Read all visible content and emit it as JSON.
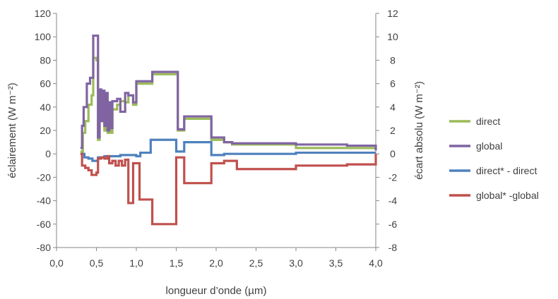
{
  "chart_data": {
    "type": "line",
    "step": true,
    "xlabel": "longueur d’onde (µm)",
    "ylabel_left": "éclairement (W m⁻²)",
    "ylabel_right": "écart absolu (W m⁻²)",
    "xlim": [
      0,
      4.0
    ],
    "ylim_left": [
      -80,
      120
    ],
    "ylim_right": [
      -8,
      12
    ],
    "x_ticks": [
      "0,0",
      "0,5",
      "1,0",
      "1,5",
      "2,0",
      "2,5",
      "3,0",
      "3,5",
      "4,0"
    ],
    "y_ticks_left": [
      "-80",
      "-60",
      "-40",
      "-20",
      "0",
      "20",
      "40",
      "60",
      "80",
      "100",
      "120"
    ],
    "y_ticks_right": [
      "-8",
      "-6",
      "-4",
      "-2",
      "0",
      "2",
      "4",
      "6",
      "8",
      "10",
      "12"
    ],
    "grid": false,
    "legend_position": "right",
    "series": [
      {
        "name": "direct",
        "color": "#9BBB59",
        "axis": "left",
        "x": [
          0.3,
          0.33,
          0.36,
          0.4,
          0.44,
          0.46,
          0.5,
          0.52,
          0.54,
          0.56,
          0.58,
          0.6,
          0.62,
          0.64,
          0.66,
          0.68,
          0.7,
          0.72,
          0.76,
          0.8,
          0.86,
          0.9,
          0.96,
          1.0,
          1.04,
          1.2,
          1.52,
          1.6,
          1.94,
          2.1,
          2.2,
          3.0,
          4.0
        ],
        "y": [
          2,
          18,
          28,
          42,
          50,
          82,
          80,
          12,
          50,
          30,
          48,
          20,
          48,
          18,
          40,
          18,
          38,
          38,
          42,
          45,
          44,
          50,
          42,
          60,
          60,
          68,
          20,
          30,
          12,
          10,
          8,
          5,
          3
        ]
      },
      {
        "name": "global",
        "color": "#8064A2",
        "axis": "left",
        "x": [
          0.3,
          0.32,
          0.34,
          0.38,
          0.42,
          0.46,
          0.52,
          0.54,
          0.56,
          0.58,
          0.6,
          0.62,
          0.64,
          0.66,
          0.68,
          0.7,
          0.72,
          0.76,
          0.8,
          0.86,
          0.9,
          0.96,
          1.0,
          1.04,
          1.2,
          1.52,
          1.6,
          1.94,
          2.1,
          2.2,
          3.0,
          3.64,
          4.0
        ],
        "y": [
          5,
          24,
          40,
          60,
          65,
          101,
          14,
          55,
          28,
          54,
          24,
          52,
          20,
          44,
          22,
          45,
          45,
          47,
          36,
          52,
          50,
          44,
          62,
          62,
          70,
          21,
          32,
          14,
          10,
          9,
          8,
          7,
          3
        ]
      },
      {
        "name": "direct* - direct",
        "color": "#4F81BD",
        "axis": "right",
        "x": [
          0.3,
          0.35,
          0.4,
          0.45,
          0.52,
          0.6,
          0.7,
          0.8,
          1.0,
          1.05,
          1.18,
          1.5,
          1.6,
          1.94,
          2.1,
          3.0,
          4.0
        ],
        "y": [
          0,
          -0.3,
          -0.4,
          -0.6,
          -0.3,
          -0.2,
          -0.2,
          -0.1,
          -0.2,
          0.1,
          1.2,
          0.2,
          1.0,
          -0.1,
          0,
          0.1,
          0.1
        ]
      },
      {
        "name": "global* -global",
        "color": "#C0504D",
        "axis": "right",
        "x": [
          0.3,
          0.32,
          0.36,
          0.4,
          0.44,
          0.5,
          0.52,
          0.56,
          0.6,
          0.64,
          0.66,
          0.7,
          0.74,
          0.78,
          0.82,
          0.86,
          0.9,
          0.96,
          1.04,
          1.2,
          1.5,
          1.6,
          1.94,
          2.1,
          2.26,
          3.0,
          3.64,
          4.0
        ],
        "y": [
          0,
          -1.0,
          -1.2,
          -1.4,
          -1.8,
          -1.6,
          -0.4,
          -0.3,
          -0.4,
          -0.2,
          -0.8,
          -0.6,
          -1.0,
          -0.6,
          -1.0,
          -0.5,
          -4.2,
          -0.8,
          -3.9,
          -6.0,
          -0.3,
          -2.5,
          -0.8,
          -0.6,
          -1.3,
          -1.0,
          -0.9,
          0
        ]
      }
    ]
  }
}
